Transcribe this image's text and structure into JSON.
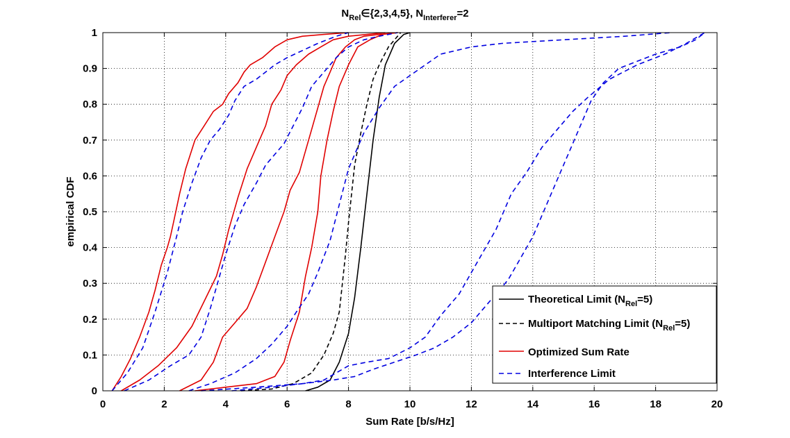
{
  "chart_data": {
    "type": "line",
    "title": {
      "base": "N",
      "sub1": "Rel",
      "mid": "∈{2,3,4,5}, N",
      "sub2": "Interferer",
      "tail": "=2"
    },
    "xlabel": "Sum Rate [b/s/Hz]",
    "ylabel": "empirical CDF",
    "xlim": [
      0,
      20
    ],
    "ylim": [
      0,
      1
    ],
    "xticks": [
      0,
      2,
      4,
      6,
      8,
      10,
      12,
      14,
      16,
      18,
      20
    ],
    "yticks": [
      0,
      0.1,
      0.2,
      0.3,
      0.4,
      0.5,
      0.6,
      0.7,
      0.8,
      0.9,
      1
    ],
    "grid": true,
    "legend_position": "bottom-right",
    "legend": [
      {
        "style": "black-solid",
        "text": "Theoretical Limit (N",
        "sub": "Rel",
        "tail": "=5)"
      },
      {
        "style": "black-dashed",
        "text": "Multiport Matching Limit  (N",
        "sub": "Rel",
        "tail": "=5)"
      },
      {
        "style": "red-solid",
        "text": "Optimized Sum Rate",
        "sub": "",
        "tail": ""
      },
      {
        "style": "blue-dashed",
        "text": "Interference Limit",
        "sub": "",
        "tail": ""
      }
    ],
    "series": [
      {
        "color": "#000000",
        "dash": "",
        "x": [
          6.6,
          7.0,
          7.4,
          7.7,
          8.0,
          8.2,
          8.4,
          8.6,
          8.8,
          9.0,
          9.2,
          9.5,
          9.8,
          10.0
        ],
        "y": [
          0,
          0.01,
          0.03,
          0.08,
          0.16,
          0.26,
          0.4,
          0.55,
          0.7,
          0.82,
          0.91,
          0.97,
          0.995,
          1
        ]
      },
      {
        "color": "#000000",
        "dash": "6,4",
        "x": [
          4.5,
          5.5,
          6.2,
          6.8,
          7.2,
          7.5,
          7.7,
          7.8,
          7.9,
          8.0,
          8.1,
          8.2,
          8.4,
          8.6,
          8.8,
          9.0,
          9.3,
          9.5,
          9.7
        ],
        "y": [
          0,
          0.005,
          0.02,
          0.05,
          0.1,
          0.16,
          0.22,
          0.3,
          0.38,
          0.47,
          0.55,
          0.63,
          0.72,
          0.8,
          0.87,
          0.91,
          0.96,
          0.98,
          1
        ]
      },
      {
        "color": "#e00000",
        "dash": "",
        "x": [
          0.3,
          0.6,
          0.9,
          1.2,
          1.5,
          1.7,
          1.9,
          2.1,
          2.2,
          2.3,
          2.5,
          2.7,
          3.0,
          3.3,
          3.6,
          3.9,
          4.1,
          4.4,
          4.6,
          4.8,
          5.2,
          5.6,
          6.0,
          6.5,
          7.2,
          8.0
        ],
        "y": [
          0,
          0.04,
          0.09,
          0.15,
          0.22,
          0.28,
          0.35,
          0.4,
          0.43,
          0.47,
          0.55,
          0.62,
          0.7,
          0.74,
          0.78,
          0.8,
          0.83,
          0.86,
          0.89,
          0.91,
          0.93,
          0.96,
          0.98,
          0.99,
          0.995,
          1
        ]
      },
      {
        "color": "#e00000",
        "dash": "",
        "x": [
          0.6,
          1.2,
          1.8,
          2.4,
          2.9,
          3.3,
          3.7,
          3.9,
          4.1,
          4.4,
          4.7,
          5.0,
          5.3,
          5.5,
          5.8,
          6.0,
          6.3,
          6.7,
          7.1,
          7.5,
          8.0,
          8.6,
          9.2
        ],
        "y": [
          0,
          0.03,
          0.07,
          0.12,
          0.18,
          0.25,
          0.32,
          0.38,
          0.45,
          0.54,
          0.62,
          0.68,
          0.74,
          0.8,
          0.84,
          0.88,
          0.91,
          0.94,
          0.96,
          0.98,
          0.99,
          0.995,
          1
        ]
      },
      {
        "color": "#e00000",
        "dash": "",
        "x": [
          2.5,
          3.2,
          3.6,
          3.9,
          4.3,
          4.7,
          5.0,
          5.3,
          5.6,
          5.9,
          6.1,
          6.4,
          6.6,
          6.8,
          7.0,
          7.2,
          7.4,
          7.6,
          7.9,
          8.2,
          8.5,
          9.0,
          9.6
        ],
        "y": [
          0,
          0.03,
          0.08,
          0.15,
          0.19,
          0.23,
          0.29,
          0.36,
          0.43,
          0.5,
          0.56,
          0.61,
          0.67,
          0.73,
          0.79,
          0.85,
          0.89,
          0.93,
          0.96,
          0.98,
          0.99,
          0.995,
          1
        ]
      },
      {
        "color": "#e00000",
        "dash": "",
        "x": [
          3.0,
          4.0,
          5.0,
          5.6,
          5.9,
          6.1,
          6.4,
          6.6,
          6.8,
          7.0,
          7.1,
          7.3,
          7.5,
          7.7,
          8.0,
          8.3,
          8.7,
          9.1,
          9.6
        ],
        "y": [
          0,
          0.01,
          0.02,
          0.04,
          0.08,
          0.14,
          0.22,
          0.32,
          0.4,
          0.5,
          0.6,
          0.7,
          0.78,
          0.85,
          0.91,
          0.96,
          0.98,
          0.995,
          1
        ]
      },
      {
        "color": "#0000e0",
        "dash": "7,5",
        "x": [
          0.3,
          0.8,
          1.3,
          1.7,
          2.1,
          2.4,
          2.6,
          2.9,
          3.2,
          3.5,
          3.8,
          4.1,
          4.3,
          4.6,
          5.0,
          5.3,
          5.6,
          6.0,
          6.5,
          7.0,
          7.6,
          8.0
        ],
        "y": [
          0,
          0.05,
          0.12,
          0.22,
          0.33,
          0.43,
          0.5,
          0.58,
          0.65,
          0.7,
          0.73,
          0.77,
          0.81,
          0.85,
          0.87,
          0.89,
          0.91,
          0.93,
          0.95,
          0.97,
          0.99,
          1
        ]
      },
      {
        "color": "#0000e0",
        "dash": "7,5",
        "x": [
          0.7,
          1.5,
          2.2,
          2.8,
          3.2,
          3.5,
          3.8,
          4.0,
          4.3,
          4.6,
          5.0,
          5.3,
          5.6,
          5.9,
          6.2,
          6.5,
          6.8,
          7.2,
          7.6,
          8.0,
          8.5,
          9.0,
          9.6
        ],
        "y": [
          0,
          0.03,
          0.07,
          0.1,
          0.15,
          0.23,
          0.32,
          0.38,
          0.46,
          0.52,
          0.58,
          0.63,
          0.66,
          0.69,
          0.74,
          0.79,
          0.85,
          0.89,
          0.93,
          0.96,
          0.98,
          0.99,
          1
        ]
      },
      {
        "color": "#0000e0",
        "dash": "7,5",
        "x": [
          2.8,
          3.5,
          4.3,
          5.0,
          5.5,
          6.0,
          6.3,
          6.7,
          7.0,
          7.4,
          7.7,
          8.0,
          8.5,
          9.0,
          9.5,
          10.0,
          11.0,
          12.0,
          13.0,
          15.0,
          17.0,
          18.5
        ],
        "y": [
          0,
          0.02,
          0.05,
          0.09,
          0.13,
          0.18,
          0.22,
          0.27,
          0.33,
          0.42,
          0.52,
          0.62,
          0.72,
          0.79,
          0.85,
          0.88,
          0.94,
          0.96,
          0.97,
          0.98,
          0.99,
          1
        ]
      },
      {
        "color": "#0000e0",
        "dash": "7,5",
        "x": [
          4.2,
          5.5,
          6.5,
          7.2,
          7.6,
          8.0,
          8.6,
          9.3,
          10.0,
          10.5,
          11.0,
          11.6,
          12.2,
          12.8,
          13.3,
          13.8,
          14.3,
          14.8,
          15.3,
          15.8,
          16.5,
          17.4,
          18.3,
          19.0,
          19.6
        ],
        "y": [
          0,
          0.01,
          0.02,
          0.03,
          0.05,
          0.07,
          0.08,
          0.09,
          0.12,
          0.15,
          0.21,
          0.27,
          0.36,
          0.45,
          0.55,
          0.61,
          0.68,
          0.73,
          0.78,
          0.82,
          0.87,
          0.91,
          0.94,
          0.97,
          1
        ]
      },
      {
        "color": "#0000e0",
        "dash": "7,5",
        "x": [
          3.2,
          5.0,
          6.5,
          7.5,
          8.2,
          8.8,
          9.5,
          10.2,
          10.8,
          11.4,
          12.0,
          12.6,
          13.2,
          13.6,
          14.0,
          14.4,
          14.7,
          15.0,
          15.3,
          15.6,
          15.9,
          16.3,
          16.8,
          17.4,
          18.0,
          18.8,
          19.3,
          19.6
        ],
        "y": [
          0,
          0.01,
          0.02,
          0.03,
          0.04,
          0.06,
          0.08,
          0.1,
          0.12,
          0.15,
          0.19,
          0.25,
          0.31,
          0.37,
          0.43,
          0.51,
          0.57,
          0.63,
          0.69,
          0.75,
          0.81,
          0.86,
          0.9,
          0.92,
          0.94,
          0.96,
          0.98,
          1
        ]
      }
    ]
  }
}
